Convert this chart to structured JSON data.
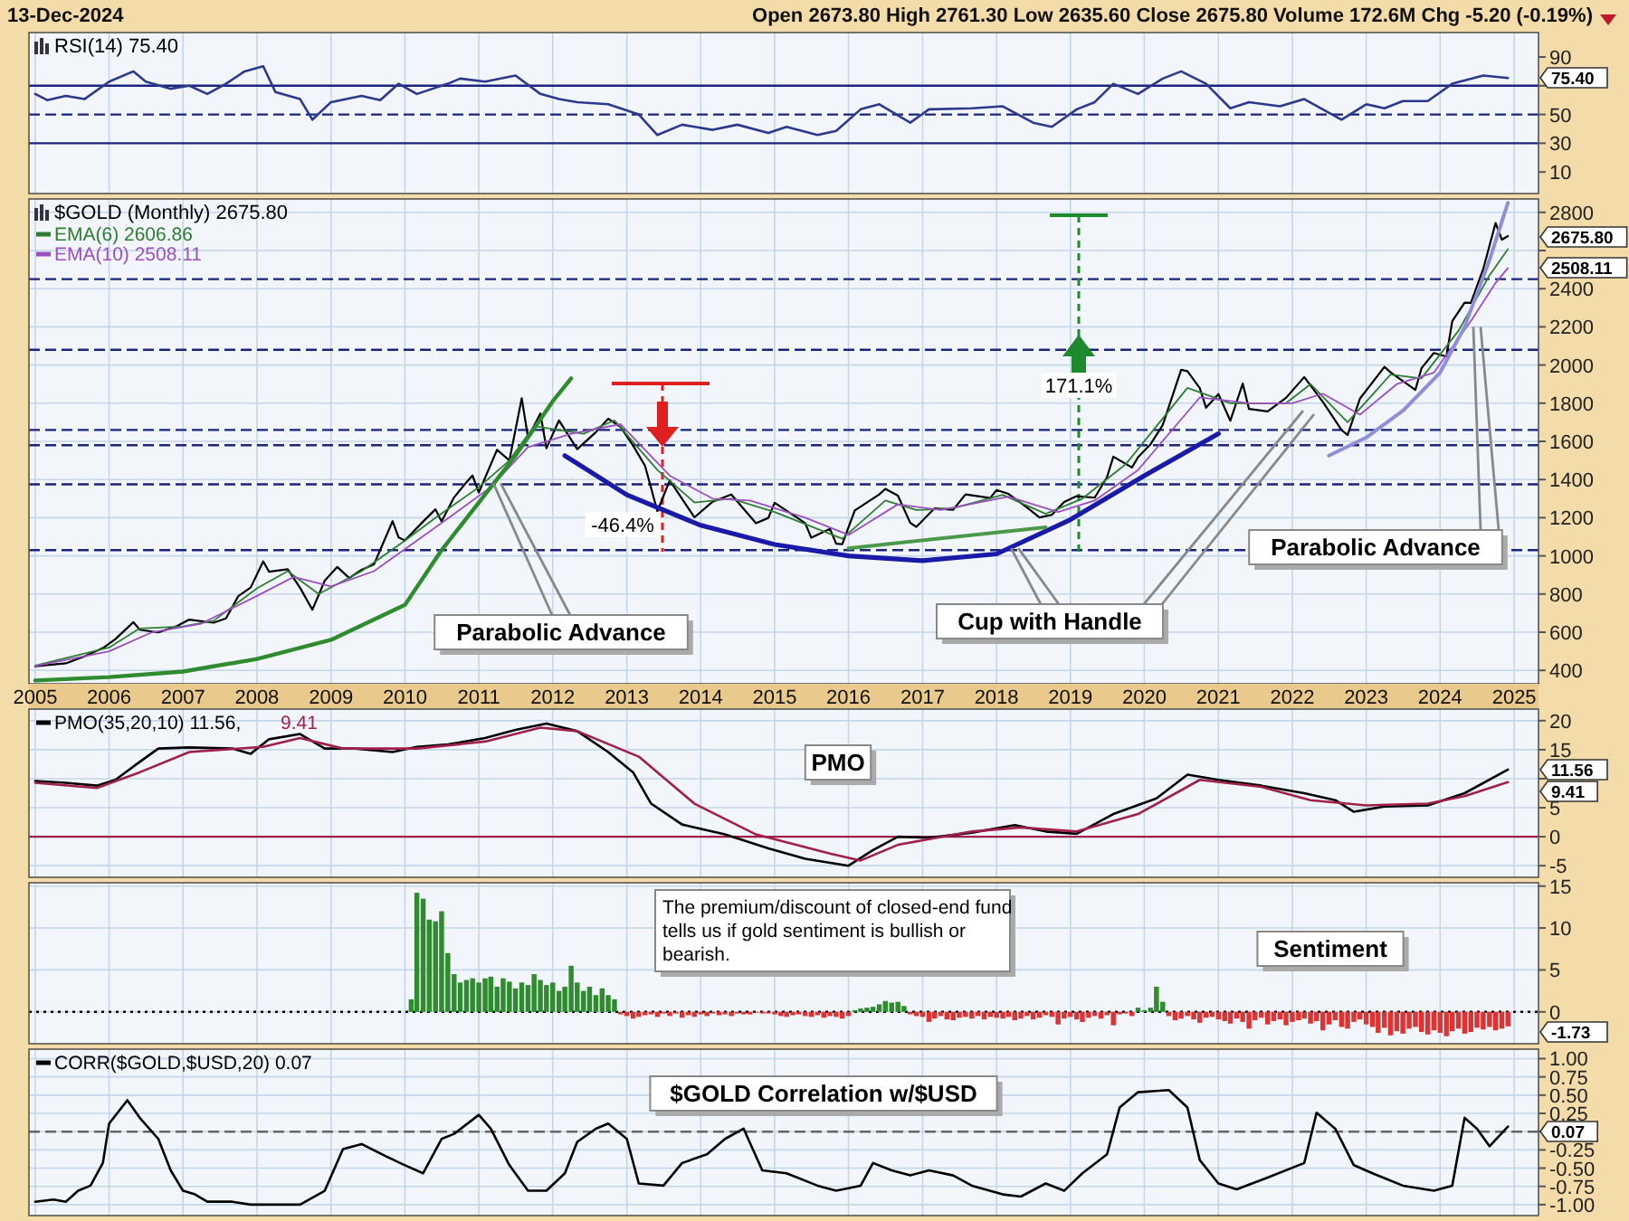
{
  "chart_data": [
    {
      "type": "line",
      "title": "RSI(14) 75.40",
      "xlim": [
        "2004-12",
        "2025-05"
      ],
      "xticks": [
        "2005",
        "2006",
        "2007",
        "2008",
        "2009",
        "2010",
        "2011",
        "2012",
        "2013",
        "2014",
        "2015",
        "2016",
        "2017",
        "2018",
        "2019",
        "2020",
        "2021",
        "2022",
        "2023",
        "2024",
        "2025"
      ],
      "ylim": [
        -5,
        107
      ],
      "yticks": [
        10,
        30,
        50,
        {
          "value": 70,
          "label": null
        },
        90
      ],
      "grid": "x",
      "tick_labels": "y",
      "ref_lines": [
        {
          "axis": "y",
          "value": 70,
          "color": "#1a237e"
        },
        {
          "axis": "y",
          "value": 50,
          "color": "#1a237e",
          "line_style": "dashed"
        },
        {
          "axis": "y",
          "value": 30,
          "color": "#1a237e"
        }
      ],
      "annotations": [
        "13-Dec-2024",
        "Open 2673.80  High 2761.30  Low 2635.60  Close 2675.80  Volume 172.6M  Chg -5.20 (-0.19%)",
        "75.40"
      ],
      "series": [
        {
          "color": "#2b3a8c",
          "x": [
            "2005-01",
            "2005-03",
            "2005-06",
            "2005-09",
            "2006-01",
            "2006-05",
            "2006-07",
            "2006-11",
            "2007-02",
            "2007-05",
            "2007-08",
            "2007-11",
            "2008-02",
            "2008-04",
            "2008-08",
            "2008-10",
            "2009-01",
            "2009-06",
            "2009-09",
            "2009-12",
            "2010-03",
            "2010-08",
            "2010-10",
            "2011-02",
            "2011-07",
            "2011-11",
            "2012-02",
            "2012-05",
            "2012-10",
            "2013-03",
            "2013-06",
            "2013-10",
            "2014-03",
            "2014-07",
            "2014-12",
            "2015-03",
            "2015-08",
            "2015-11",
            "2016-03",
            "2016-06",
            "2016-11",
            "2017-02",
            "2017-09",
            "2018-02",
            "2018-07",
            "2018-10",
            "2019-02",
            "2019-05",
            "2019-08",
            "2019-12",
            "2020-04",
            "2020-07",
            "2020-11",
            "2021-03",
            "2021-06",
            "2021-11",
            "2022-03",
            "2022-09",
            "2023-01",
            "2023-04",
            "2023-07",
            "2023-11",
            "2024-03",
            "2024-08",
            "2024-12"
          ],
          "values": [
            64.3,
            60,
            62.9,
            60.7,
            72.9,
            80,
            72.9,
            67.9,
            70,
            64.3,
            71.4,
            80,
            83.6,
            65.7,
            60.7,
            46.4,
            58.6,
            62.9,
            60,
            71.4,
            64.3,
            71.4,
            75,
            72.9,
            77.1,
            64.3,
            60.7,
            58.6,
            57.1,
            50,
            35.7,
            42.9,
            39.3,
            42.9,
            37.1,
            41.4,
            35.7,
            38.6,
            53.6,
            57.1,
            44.3,
            53.6,
            54.3,
            55.7,
            44.3,
            41.4,
            53.6,
            58.6,
            71.4,
            64.3,
            75,
            80,
            71.4,
            54.3,
            58.6,
            55.7,
            60.7,
            46.4,
            57.1,
            54.3,
            59.3,
            59.3,
            71.4,
            77.1,
            75.4
          ]
        }
      ]
    },
    {
      "type": "line",
      "title": "$GOLD (Monthly) 2675.80",
      "legend": "top left",
      "xlim": [
        "2004-12",
        "2025-05"
      ],
      "xticks": [
        "2005",
        "2006",
        "2007",
        "2008",
        "2009",
        "2010",
        "2011",
        "2012",
        "2013",
        "2014",
        "2015",
        "2016",
        "2017",
        "2018",
        "2019",
        "2020",
        "2021",
        "2022",
        "2023",
        "2024",
        "2025"
      ],
      "ylim": [
        330,
        2870
      ],
      "yticks": [
        400,
        600,
        800,
        1000,
        1200,
        1400,
        1600,
        1800,
        2000,
        2200,
        2400,
        {
          "value": 2600,
          "label": null
        },
        2800
      ],
      "grid": true,
      "ref_lines": [
        {
          "axis": "y",
          "value": 2450,
          "color": "#1a237e",
          "line_style": "dashed"
        },
        {
          "axis": "y",
          "value": 2080,
          "color": "#1a237e",
          "line_style": "dashed"
        },
        {
          "axis": "y",
          "value": 1660,
          "color": "#1a237e",
          "line_style": "dashed"
        },
        {
          "axis": "y",
          "value": 1580,
          "color": "#1a237e",
          "line_style": "dashed"
        },
        {
          "axis": "y",
          "value": 1375,
          "color": "#1a237e",
          "line_style": "dashed"
        },
        {
          "axis": "y",
          "value": 1030,
          "color": "#1a237e",
          "line_style": "dashed"
        }
      ],
      "annotations": [
        {
          "text": "Parabolic Advance",
          "x": "2011-04",
          "y": 1380
        },
        {
          "text": "Cup with Handle",
          "x": "2018-04",
          "y": 1040
        },
        {
          "text": "Parabolic Advance",
          "x": "2024-07",
          "y": 2200
        },
        "-46.4%",
        "171.1%",
        "2675.80",
        "2508.11"
      ],
      "series": [
        {
          "color": "#000000",
          "x": [
            "2005-01",
            "2005-06",
            "2005-09",
            "2005-12",
            "2006-02",
            "2006-05",
            "2006-06",
            "2006-09",
            "2006-12",
            "2007-02",
            "2007-06",
            "2007-08",
            "2007-10",
            "2007-12",
            "2008-02",
            "2008-03",
            "2008-06",
            "2008-08",
            "2008-10",
            "2008-12",
            "2009-02",
            "2009-04",
            "2009-06",
            "2009-08",
            "2009-11",
            "2009-12",
            "2010-01",
            "2010-04",
            "2010-06",
            "2010-07",
            "2010-09",
            "2010-11",
            "2010-12",
            "2011-01",
            "2011-04",
            "2011-06",
            "2011-08",
            "2011-09",
            "2011-11",
            "2011-12",
            "2012-02",
            "2012-05",
            "2012-08",
            "2012-10",
            "2012-12",
            "2013-02",
            "2013-04",
            "2013-06",
            "2013-08",
            "2013-12",
            "2014-03",
            "2014-06",
            "2014-10",
            "2014-12",
            "2015-01",
            "2015-06",
            "2015-07",
            "2015-10",
            "2015-11",
            "2015-12",
            "2016-02",
            "2016-06",
            "2016-07",
            "2016-09",
            "2016-11",
            "2016-12",
            "2017-03",
            "2017-06",
            "2017-08",
            "2017-12",
            "2018-01",
            "2018-03",
            "2018-06",
            "2018-08",
            "2018-10",
            "2018-12",
            "2019-02",
            "2019-05",
            "2019-07",
            "2019-08",
            "2019-11",
            "2019-12",
            "2020-02",
            "2020-04",
            "2020-07",
            "2020-08",
            "2020-10",
            "2020-11",
            "2021-01",
            "2021-03",
            "2021-05",
            "2021-06",
            "2021-09",
            "2021-12",
            "2022-03",
            "2022-06",
            "2022-09",
            "2022-10",
            "2022-12",
            "2023-04",
            "2023-05",
            "2023-09",
            "2023-10",
            "2023-12",
            "2024-02",
            "2024-03",
            "2024-05",
            "2024-06",
            "2024-08",
            "2024-10",
            "2024-11",
            "2024-12"
          ],
          "values": [
            422,
            437,
            473,
            517,
            564,
            653,
            613,
            599,
            632,
            666,
            650,
            672,
            789,
            834,
            971,
            917,
            930,
            833,
            718,
            870,
            942,
            884,
            927,
            955,
            1182,
            1096,
            1081,
            1180,
            1244,
            1181,
            1307,
            1386,
            1421,
            1332,
            1556,
            1500,
            1826,
            1620,
            1746,
            1564,
            1710,
            1559,
            1648,
            1719,
            1675,
            1578,
            1472,
            1234,
            1396,
            1202,
            1284,
            1322,
            1171,
            1199,
            1278,
            1172,
            1095,
            1142,
            1064,
            1061,
            1238,
            1322,
            1351,
            1316,
            1173,
            1152,
            1249,
            1242,
            1322,
            1303,
            1345,
            1325,
            1253,
            1201,
            1215,
            1282,
            1313,
            1305,
            1413,
            1520,
            1463,
            1517,
            1585,
            1686,
            1975,
            1968,
            1879,
            1776,
            1848,
            1708,
            1903,
            1770,
            1757,
            1828,
            1937,
            1807,
            1660,
            1633,
            1824,
            1990,
            1962,
            1870,
            1983,
            2063,
            2044,
            2230,
            2327,
            2326,
            2503,
            2744,
            2657,
            2675.8
          ]
        },
        {
          "name": "EMA(6) 2606.86",
          "color": "#2e7d32",
          "x": [
            "2005-01",
            "2006-01",
            "2006-06",
            "2007-01",
            "2007-06",
            "2008-01",
            "2008-06",
            "2008-11",
            "2009-06",
            "2010-01",
            "2010-06",
            "2011-01",
            "2011-06",
            "2011-10",
            "2012-06",
            "2012-11",
            "2013-06",
            "2013-12",
            "2014-06",
            "2015-01",
            "2015-12",
            "2016-07",
            "2016-12",
            "2017-06",
            "2018-02",
            "2018-09",
            "2019-03",
            "2019-10",
            "2020-08",
            "2021-03",
            "2021-12",
            "2022-04",
            "2022-10",
            "2023-05",
            "2023-10",
            "2024-04",
            "2024-09",
            "2024-12"
          ],
          "values": [
            425,
            520,
            620,
            630,
            660,
            830,
            920,
            800,
            920,
            1080,
            1200,
            1360,
            1500,
            1680,
            1640,
            1710,
            1450,
            1280,
            1300,
            1230,
            1090,
            1290,
            1240,
            1250,
            1320,
            1220,
            1300,
            1480,
            1880,
            1800,
            1800,
            1900,
            1700,
            1950,
            1930,
            2180,
            2470,
            2606.86
          ]
        },
        {
          "name": "EMA(10) 2508.11",
          "color": "#9b4fc0",
          "x": [
            "2005-01",
            "2006-01",
            "2006-08",
            "2007-04",
            "2008-01",
            "2008-07",
            "2009-01",
            "2009-08",
            "2010-03",
            "2010-09",
            "2011-03",
            "2011-09",
            "2012-04",
            "2012-12",
            "2013-08",
            "2014-03",
            "2014-09",
            "2015-06",
            "2016-01",
            "2016-09",
            "2017-04",
            "2018-03",
            "2018-11",
            "2019-05",
            "2019-12",
            "2020-10",
            "2021-06",
            "2022-01",
            "2022-06",
            "2022-12",
            "2023-06",
            "2023-12",
            "2024-06",
            "2024-10",
            "2024-12"
          ],
          "values": [
            423,
            500,
            600,
            645,
            790,
            890,
            840,
            920,
            1080,
            1220,
            1360,
            1570,
            1640,
            1690,
            1420,
            1300,
            1290,
            1200,
            1110,
            1270,
            1240,
            1310,
            1230,
            1290,
            1450,
            1830,
            1800,
            1800,
            1850,
            1740,
            1900,
            1960,
            2230,
            2430,
            2508.11
          ]
        },
        {
          "color": "#2e8b2e",
          "x": [
            "2005-01",
            "2006-01",
            "2007-01",
            "2008-01",
            "2009-01",
            "2010-01",
            "2010-07",
            "2011-01",
            "2011-07",
            "2012-01",
            "2012-04"
          ],
          "values": [
            347,
            365,
            394,
            460,
            560,
            743,
            1030,
            1280,
            1525,
            1810,
            1930
          ]
        },
        {
          "color": "#1a1aa8",
          "x": [
            "2012-03",
            "2013-01",
            "2014-01",
            "2015-01",
            "2016-01",
            "2017-01",
            "2018-01",
            "2019-01",
            "2020-01",
            "2021-01"
          ],
          "values": [
            1525,
            1320,
            1160,
            1060,
            1000,
            975,
            1010,
            1190,
            1420,
            1640
          ]
        },
        {
          "color": "#4a9a4a",
          "x": [
            "2016-01",
            "2018-09"
          ],
          "values": [
            1040,
            1150
          ]
        },
        {
          "color": "#8f8fd8",
          "x": [
            "2022-07",
            "2023-01",
            "2023-07",
            "2024-01",
            "2024-05",
            "2024-09",
            "2024-12"
          ],
          "values": [
            1525,
            1620,
            1760,
            1960,
            2200,
            2550,
            2850
          ]
        }
      ]
    },
    {
      "type": "line",
      "legend": "top left",
      "xlim": [
        "2004-12",
        "2025-05"
      ],
      "xticks": [
        "2005",
        "2006",
        "2007",
        "2008",
        "2009",
        "2010",
        "2011",
        "2012",
        "2013",
        "2014",
        "2015",
        "2016",
        "2017",
        "2018",
        "2019",
        "2020",
        "2021",
        "2022",
        "2023",
        "2024",
        "2025"
      ],
      "ylim": [
        -7,
        22
      ],
      "yticks": [
        -5,
        0,
        5,
        {
          "value": 10,
          "label": null
        },
        15,
        20
      ],
      "grid": true,
      "tick_labels": "y",
      "ref_lines": [
        {
          "axis": "y",
          "value": 0,
          "color": "#a0204a"
        }
      ],
      "annotations": [
        "PMO",
        "11.56",
        "9.41"
      ],
      "series": [
        {
          "name": "PMO(35,20,10) 11.56,",
          "color": "#000000",
          "x": [
            "2005-01",
            "2005-06",
            "2005-11",
            "2006-02",
            "2006-06",
            "2006-09",
            "2007-02",
            "2007-09",
            "2007-12",
            "2008-03",
            "2008-08",
            "2008-12",
            "2009-05",
            "2009-11",
            "2010-03",
            "2010-08",
            "2011-02",
            "2011-07",
            "2011-12",
            "2012-05",
            "2012-10",
            "2013-02",
            "2013-05",
            "2013-10",
            "2014-05",
            "2014-12",
            "2015-06",
            "2016-01",
            "2016-05",
            "2016-09",
            "2017-02",
            "2017-09",
            "2018-04",
            "2018-09",
            "2019-02",
            "2019-08",
            "2020-03",
            "2020-08",
            "2021-01",
            "2021-08",
            "2022-03",
            "2022-08",
            "2022-11",
            "2023-04",
            "2023-11",
            "2024-05",
            "2024-12"
          ],
          "values": [
            9.6,
            9.3,
            8.8,
            9.8,
            12.9,
            15.2,
            15.4,
            15.2,
            14.3,
            16.8,
            17.7,
            15.2,
            15.2,
            14.6,
            15.5,
            15.9,
            17,
            18.4,
            19.5,
            18.2,
            14.6,
            11.1,
            5.7,
            2.1,
            0.4,
            -2,
            -3.8,
            -5,
            -2.3,
            0,
            -0.2,
            0.7,
            2,
            0.9,
            0.5,
            3.9,
            6.6,
            10.7,
            9.8,
            8.8,
            7.5,
            6.3,
            4.3,
            5.2,
            5.4,
            7.5,
            11.56
          ]
        },
        {
          "name": "9.41",
          "color": "#a0204a",
          "x": [
            "2005-01",
            "2005-11",
            "2006-06",
            "2007-02",
            "2008-02",
            "2008-08",
            "2009-03",
            "2010-03",
            "2011-02",
            "2011-11",
            "2012-05",
            "2013-03",
            "2013-12",
            "2014-10",
            "2015-10",
            "2016-03",
            "2016-09",
            "2017-09",
            "2018-05",
            "2019-02",
            "2019-12",
            "2020-10",
            "2021-08",
            "2022-04",
            "2023-01",
            "2023-11",
            "2024-05",
            "2024-12"
          ],
          "values": [
            9.3,
            8.4,
            11.1,
            14.6,
            15.5,
            17,
            15.2,
            15.2,
            16.4,
            18.8,
            18.2,
            13.8,
            5.7,
            0.4,
            -2.9,
            -4.1,
            -1.4,
            0.9,
            1.6,
            0.9,
            3.9,
            9.8,
            8.6,
            6.3,
            5.4,
            5.7,
            7,
            9.41
          ]
        }
      ]
    },
    {
      "type": "bar",
      "xlim": [
        "2004-12",
        "2025-05"
      ],
      "xticks": [
        "2005",
        "2006",
        "2007",
        "2008",
        "2009",
        "2010",
        "2011",
        "2012",
        "2013",
        "2014",
        "2015",
        "2016",
        "2017",
        "2018",
        "2019",
        "2020",
        "2021",
        "2022",
        "2023",
        "2024",
        "2025"
      ],
      "ylim": [
        -3.8,
        15.4
      ],
      "yticks": [
        0,
        5,
        10,
        15
      ],
      "grid": true,
      "tick_labels": "y",
      "ref_lines": [
        {
          "axis": "y",
          "value": 0,
          "color": "#000000",
          "line_style": "dotted"
        }
      ],
      "annotations": [
        "The premium/discount of closed-end fund tells us if gold sentiment is bullish or bearish.",
        "Sentiment",
        "-1.73"
      ],
      "series": [
        {
          "color": "#2e8b2e",
          "x": [
            "2010-02",
            "2010-03",
            "2010-04",
            "2010-05",
            "2010-06",
            "2010-07",
            "2010-08",
            "2010-09",
            "2010-10",
            "2010-11",
            "2010-12",
            "2011-01",
            "2011-02",
            "2011-03",
            "2011-04",
            "2011-05",
            "2011-06",
            "2011-07",
            "2011-08",
            "2011-09",
            "2011-10",
            "2011-11",
            "2011-12",
            "2012-01",
            "2012-02",
            "2012-03",
            "2012-04",
            "2012-05",
            "2012-06",
            "2012-07",
            "2012-08",
            "2012-09",
            "2012-10",
            "2012-11",
            "2016-02",
            "2016-03",
            "2016-04",
            "2016-05",
            "2016-06",
            "2016-07",
            "2016-08",
            "2016-09",
            "2016-10",
            "2019-12",
            "2020-01",
            "2020-02",
            "2020-03",
            "2020-04"
          ],
          "values": [
            1.5,
            14.2,
            13.5,
            11.0,
            10.8,
            12.0,
            7.0,
            4.5,
            3.5,
            3.8,
            4.0,
            3.5,
            4.0,
            4.2,
            3.0,
            4.0,
            3.6,
            2.8,
            3.5,
            3.2,
            4.5,
            3.8,
            3.2,
            3.5,
            2.5,
            3.0,
            5.5,
            3.5,
            2.5,
            3.0,
            2.0,
            2.8,
            2.0,
            1.5,
            0.2,
            0.4,
            0.5,
            0.6,
            0.9,
            1.3,
            1.1,
            1.2,
            0.7,
            0.5,
            0.2,
            0.5,
            3.0,
            1.2
          ]
        },
        {
          "color": "#dd3333",
          "x": [
            "2012-12",
            "2013-01",
            "2013-02",
            "2013-03",
            "2013-04",
            "2013-05",
            "2013-06",
            "2013-07",
            "2013-08",
            "2013-09",
            "2013-10",
            "2013-11",
            "2013-12",
            "2014-01",
            "2014-02",
            "2014-03",
            "2014-04",
            "2014-05",
            "2014-06",
            "2014-07",
            "2014-08",
            "2014-09",
            "2014-10",
            "2014-11",
            "2014-12",
            "2015-01",
            "2015-02",
            "2015-03",
            "2015-04",
            "2015-05",
            "2015-06",
            "2015-07",
            "2015-08",
            "2015-09",
            "2015-10",
            "2015-11",
            "2015-12",
            "2016-01",
            "2016-11",
            "2016-12",
            "2017-01",
            "2017-02",
            "2017-03",
            "2017-04",
            "2017-05",
            "2017-06",
            "2017-07",
            "2017-08",
            "2017-09",
            "2017-10",
            "2017-11",
            "2017-12",
            "2018-01",
            "2018-02",
            "2018-03",
            "2018-04",
            "2018-05",
            "2018-06",
            "2018-07",
            "2018-08",
            "2018-09",
            "2018-10",
            "2018-11",
            "2018-12",
            "2019-01",
            "2019-02",
            "2019-03",
            "2019-04",
            "2019-05",
            "2019-06",
            "2019-07",
            "2019-08",
            "2019-09",
            "2019-10",
            "2019-11",
            "2020-05",
            "2020-06",
            "2020-07",
            "2020-08",
            "2020-09",
            "2020-10",
            "2020-11",
            "2020-12",
            "2021-01",
            "2021-02",
            "2021-03",
            "2021-04",
            "2021-05",
            "2021-06",
            "2021-07",
            "2021-08",
            "2021-09",
            "2021-10",
            "2021-11",
            "2021-12",
            "2022-01",
            "2022-02",
            "2022-03",
            "2022-04",
            "2022-05",
            "2022-06",
            "2022-07",
            "2022-08",
            "2022-09",
            "2022-10",
            "2022-11",
            "2022-12",
            "2023-01",
            "2023-02",
            "2023-03",
            "2023-04",
            "2023-05",
            "2023-06",
            "2023-07",
            "2023-08",
            "2023-09",
            "2023-10",
            "2023-11",
            "2023-12",
            "2024-01",
            "2024-02",
            "2024-03",
            "2024-04",
            "2024-05",
            "2024-06",
            "2024-07",
            "2024-08",
            "2024-09",
            "2024-10",
            "2024-11",
            "2024-12"
          ],
          "values": [
            -0.3,
            -0.5,
            -0.8,
            -0.6,
            -0.4,
            -0.3,
            -0.6,
            -0.2,
            -0.5,
            -0.2,
            -0.7,
            -0.4,
            -0.6,
            -0.3,
            -0.5,
            -0.2,
            -0.4,
            -0.3,
            -0.5,
            -0.2,
            -0.3,
            -0.3,
            -0.1,
            -0.2,
            -0.2,
            -0.3,
            -0.5,
            -0.6,
            -0.4,
            -0.3,
            -0.5,
            -0.6,
            -0.4,
            -0.7,
            -0.5,
            -0.6,
            -0.8,
            -0.5,
            -0.3,
            -0.5,
            -0.6,
            -1.2,
            -0.8,
            -0.5,
            -0.9,
            -1.0,
            -0.7,
            -0.6,
            -0.8,
            -0.5,
            -0.9,
            -0.6,
            -0.7,
            -0.8,
            -0.6,
            -1.0,
            -0.8,
            -0.5,
            -0.9,
            -0.7,
            -0.4,
            -0.6,
            -1.5,
            -0.8,
            -0.6,
            -0.9,
            -1.2,
            -0.7,
            -0.5,
            -0.8,
            -0.4,
            -1.6,
            -0.3,
            -0.2,
            -0.5,
            -0.5,
            -1.0,
            -0.8,
            -0.5,
            -0.9,
            -1.3,
            -0.7,
            -0.6,
            -0.9,
            -1.1,
            -1.4,
            -0.8,
            -1.2,
            -2.0,
            -1.0,
            -0.7,
            -1.5,
            -1.1,
            -0.9,
            -1.6,
            -1.2,
            -1.0,
            -0.8,
            -1.4,
            -1.1,
            -2.2,
            -1.5,
            -1.0,
            -1.8,
            -2.0,
            -1.2,
            -0.9,
            -1.5,
            -1.8,
            -2.5,
            -1.9,
            -2.8,
            -2.3,
            -2.6,
            -2.0,
            -1.8,
            -2.4,
            -2.7,
            -2.2,
            -2.5,
            -2.9,
            -2.3,
            -2.0,
            -2.6,
            -2.4,
            -1.9,
            -2.1,
            -1.8,
            -2.2,
            -2.0,
            -1.73
          ]
        }
      ]
    },
    {
      "type": "line",
      "legend": "top left",
      "xlim": [
        "2004-12",
        "2025-05"
      ],
      "xticks": [
        "2005",
        "2006",
        "2007",
        "2008",
        "2009",
        "2010",
        "2011",
        "2012",
        "2013",
        "2014",
        "2015",
        "2016",
        "2017",
        "2018",
        "2019",
        "2020",
        "2021",
        "2022",
        "2023",
        "2024",
        "2025"
      ],
      "ylim": [
        -1.15,
        1.13
      ],
      "yticks": [
        {
          "value": -1,
          "label": "-1.00"
        },
        {
          "value": -0.75,
          "label": "-0.75"
        },
        {
          "value": -0.5,
          "label": "-0.50"
        },
        {
          "value": -0.25,
          "label": "-0.25"
        },
        {
          "value": 0,
          "label": null
        },
        {
          "value": 0.25,
          "label": "0.25"
        },
        {
          "value": 0.5,
          "label": "0.50"
        },
        {
          "value": 0.75,
          "label": "0.75"
        },
        {
          "value": 1,
          "label": "1.00"
        }
      ],
      "grid": true,
      "tick_labels": "y",
      "ref_lines": [
        {
          "axis": "y",
          "value": 0,
          "color": "#666666",
          "line_style": "dashed"
        }
      ],
      "annotations": [
        "$GOLD Correlation w/$USD",
        "0.07"
      ],
      "series": [
        {
          "name": "CORR($GOLD,$USD,20) 0.07",
          "color": "#000000",
          "x": [
            "2005-01",
            "2005-04",
            "2005-06",
            "2005-08",
            "2005-10",
            "2005-12",
            "2006-01",
            "2006-04",
            "2006-06",
            "2006-09",
            "2006-11",
            "2007-01",
            "2007-03",
            "2007-05",
            "2007-09",
            "2007-12",
            "2008-03",
            "2008-08",
            "2008-12",
            "2009-03",
            "2009-06",
            "2009-10",
            "2010-01",
            "2010-04",
            "2010-07",
            "2010-09",
            "2011-01",
            "2011-03",
            "2011-06",
            "2011-09",
            "2011-12",
            "2012-03",
            "2012-05",
            "2012-08",
            "2012-10",
            "2013-01",
            "2013-03",
            "2013-07",
            "2013-10",
            "2014-02",
            "2014-05",
            "2014-08",
            "2014-11",
            "2015-03",
            "2015-08",
            "2015-11",
            "2016-03",
            "2016-05",
            "2016-08",
            "2016-11",
            "2017-02",
            "2017-06",
            "2017-09",
            "2018-02",
            "2018-05",
            "2018-09",
            "2018-12",
            "2019-03",
            "2019-07",
            "2019-09",
            "2019-12",
            "2020-05",
            "2020-08",
            "2020-10",
            "2021-01",
            "2021-04",
            "2021-09",
            "2022-03",
            "2022-05",
            "2022-08",
            "2022-11",
            "2023-02",
            "2023-07",
            "2023-12",
            "2024-03",
            "2024-05",
            "2024-07",
            "2024-09",
            "2024-12"
          ],
          "values": [
            -0.96,
            -0.93,
            -0.96,
            -0.81,
            -0.74,
            -0.43,
            0.11,
            0.43,
            0.19,
            -0.1,
            -0.53,
            -0.81,
            -0.86,
            -0.96,
            -0.96,
            -1.0,
            -1.0,
            -1.0,
            -0.81,
            -0.24,
            -0.17,
            -0.34,
            -0.46,
            -0.57,
            -0.1,
            -0.03,
            0.23,
            0.04,
            -0.46,
            -0.81,
            -0.81,
            -0.57,
            -0.14,
            0.04,
            0.11,
            -0.1,
            -0.71,
            -0.74,
            -0.43,
            -0.31,
            -0.1,
            0.04,
            -0.53,
            -0.57,
            -0.74,
            -0.81,
            -0.74,
            -0.43,
            -0.53,
            -0.6,
            -0.53,
            -0.6,
            -0.74,
            -0.86,
            -0.89,
            -0.71,
            -0.81,
            -0.57,
            -0.31,
            0.33,
            0.54,
            0.57,
            0.33,
            -0.39,
            -0.71,
            -0.79,
            -0.63,
            -0.43,
            0.26,
            0.04,
            -0.46,
            -0.57,
            -0.74,
            -0.81,
            -0.74,
            0.19,
            0.04,
            -0.2,
            0.07
          ]
        }
      ]
    }
  ]
}
